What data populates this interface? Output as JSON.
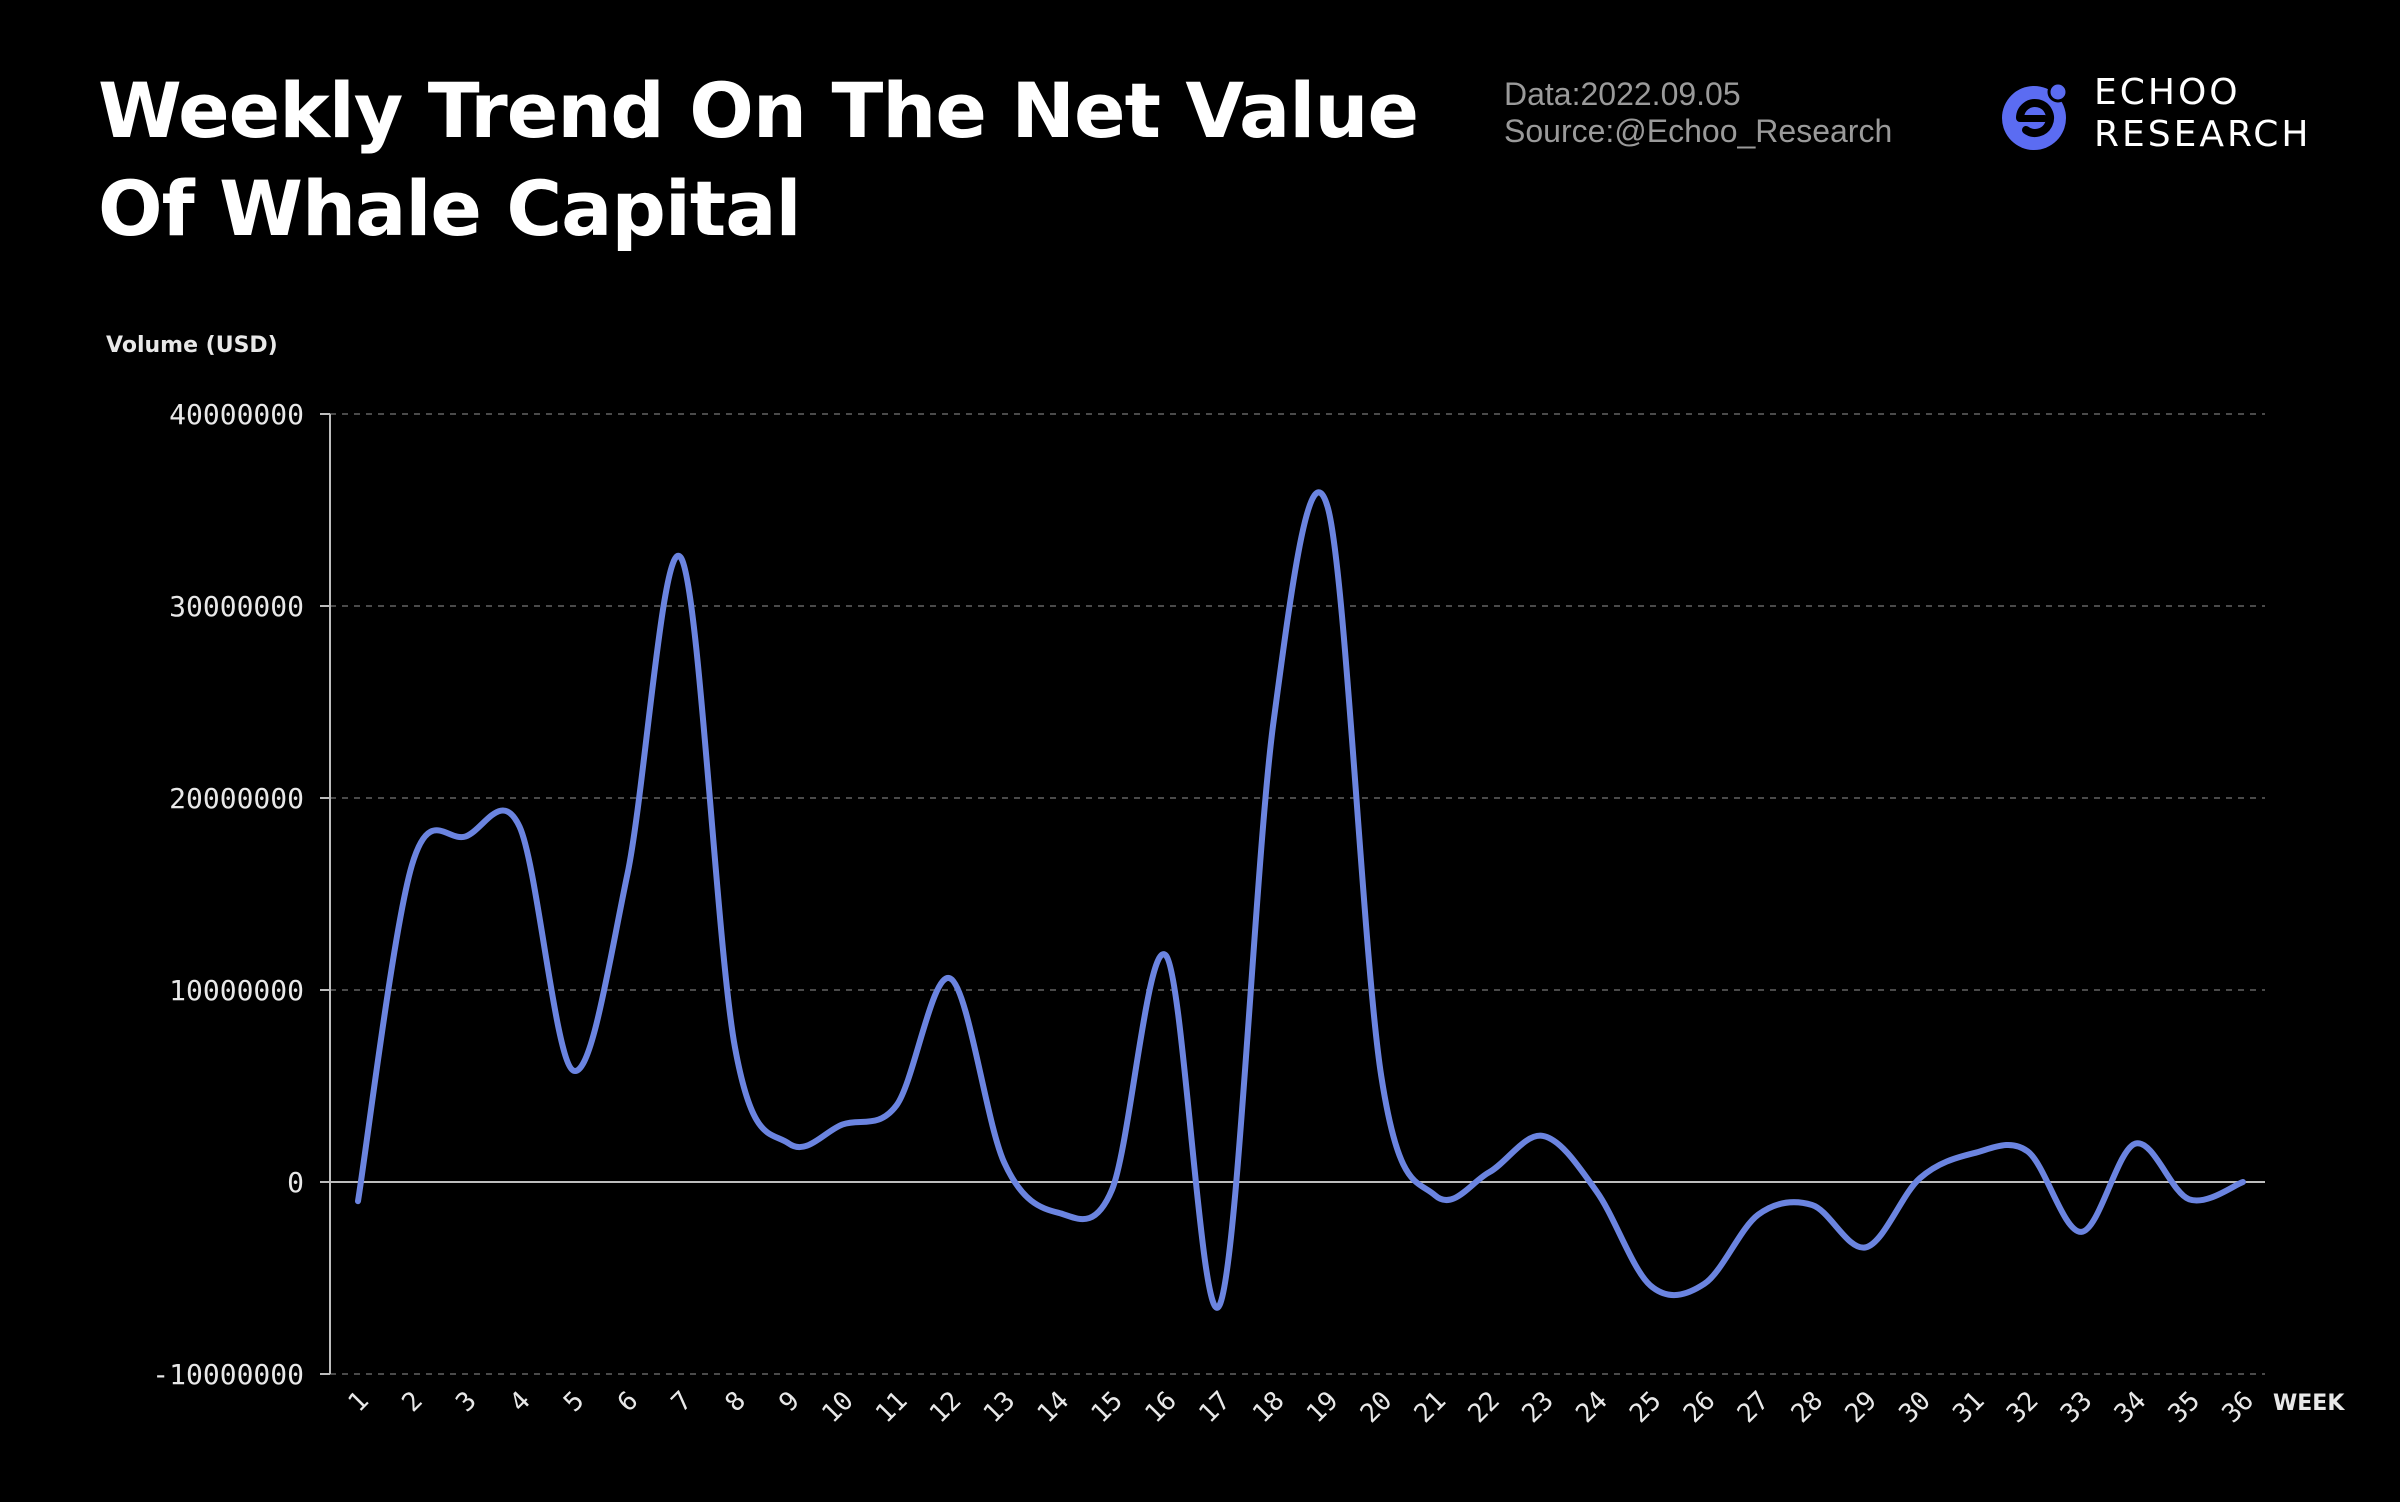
{
  "header": {
    "title": "Weekly Trend On The Net Value Of Whale Capital",
    "date_line": "Data:2022.09.05",
    "source_line": "Source:@Echoo_Research"
  },
  "logo": {
    "line1": "ECHOO",
    "line2": "RESEARCH",
    "mark_icon": "echoo-e-logo"
  },
  "colors": {
    "background": "#000000",
    "line": "#6b84e0",
    "axis": "#bdbdbd",
    "grid": "#4a4a4a",
    "logo": "#5b6cf2"
  },
  "chart_data": {
    "type": "line",
    "ylabel": "Volume (USD)",
    "xlabel": "WEEK",
    "ylim": [
      -10000000,
      40000000
    ],
    "yticks": [
      40000000,
      30000000,
      20000000,
      10000000,
      0,
      -10000000
    ],
    "grid": "horizontal dashed",
    "x": [
      1,
      2,
      3,
      4,
      5,
      6,
      7,
      8,
      9,
      10,
      11,
      12,
      13,
      14,
      15,
      16,
      17,
      18,
      19,
      20,
      21,
      22,
      23,
      24,
      25,
      26,
      27,
      28,
      29,
      30,
      31,
      32,
      33,
      34,
      35,
      36
    ],
    "series": [
      {
        "values": [
          -1000000,
          16500000,
          18000000,
          18500000,
          5800000,
          16000000,
          32500000,
          7000000,
          2000000,
          3000000,
          4000000,
          10600000,
          1000000,
          -1600000,
          -400000,
          11800000,
          -6400000,
          24000000,
          35200000,
          5500000,
          -700000,
          500000,
          2400000,
          -500000,
          -5400000,
          -5300000,
          -1700000,
          -1200000,
          -3400000,
          200000,
          1500000,
          1600000,
          -2600000,
          2000000,
          -900000,
          0
        ]
      }
    ]
  }
}
